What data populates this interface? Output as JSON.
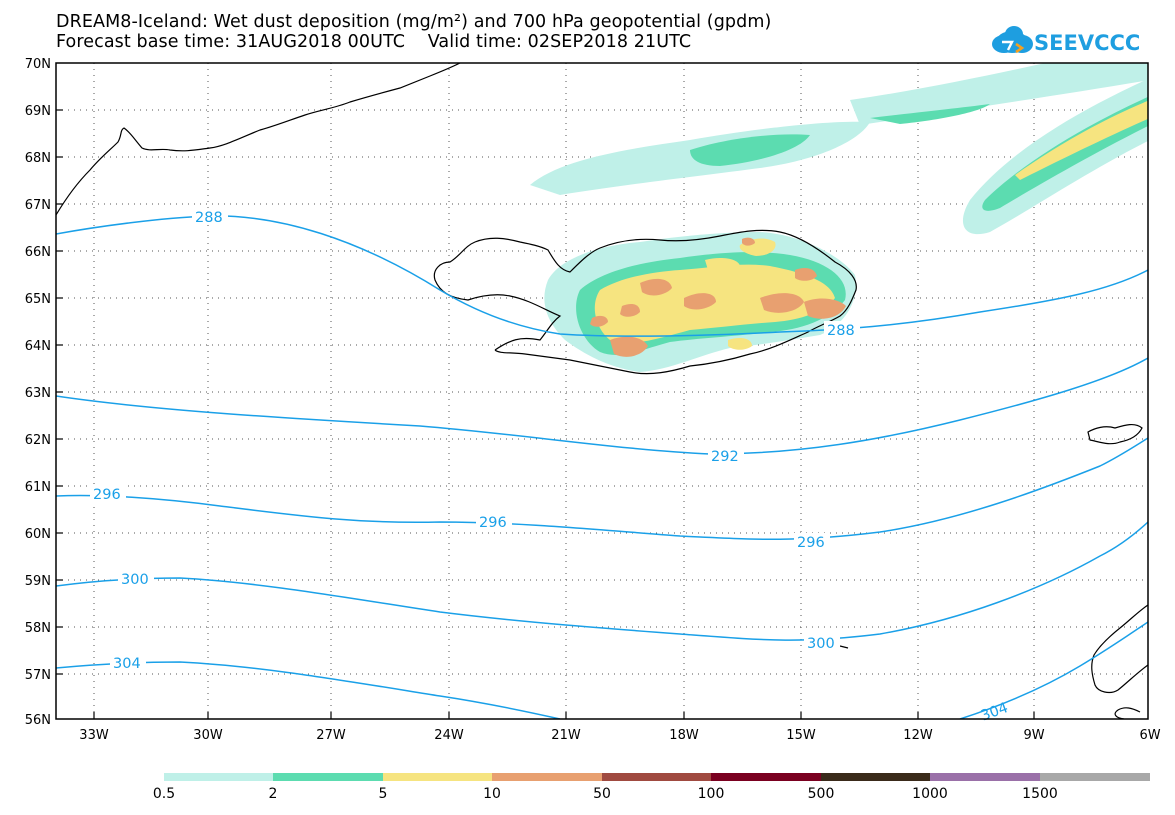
{
  "header": {
    "title_line1": "DREAM8-Iceland: Wet dust deposition (mg/m²) and 700 hPa geopotential (gpdm)",
    "title_line2": "Forecast base time: 31AUG2018 00UTC    Valid time: 02SEP2018 21UTC",
    "logo_text": "SEEVCCC",
    "logo_color": "#1e9ee0"
  },
  "map": {
    "lon_range": [
      -34.3,
      -6
    ],
    "lat_range": [
      56,
      70
    ],
    "lon_labels": [
      "33W",
      "30W",
      "27W",
      "24W",
      "21W",
      "18W",
      "15W",
      "12W",
      "9W",
      "6W"
    ],
    "lat_labels": [
      "56N",
      "57N",
      "58N",
      "59N",
      "60N",
      "61N",
      "62N",
      "63N",
      "64N",
      "65N",
      "66N",
      "67N",
      "68N",
      "69N",
      "70N"
    ],
    "contour_color": "#1aa0e8",
    "contour_labels": [
      "288",
      "288",
      "292",
      "296",
      "296",
      "296",
      "300",
      "300",
      "304",
      "304"
    ]
  },
  "colorbar": {
    "labels": [
      "0.5",
      "2",
      "5",
      "10",
      "50",
      "100",
      "500",
      "1000",
      "1500"
    ],
    "colors": [
      "#bff0e8",
      "#5cdcb0",
      "#f6e480",
      "#e8a070",
      "#a04a40",
      "#7a0020",
      "#3a2a1a",
      "#9a70a8",
      "#a8a8a8"
    ]
  }
}
